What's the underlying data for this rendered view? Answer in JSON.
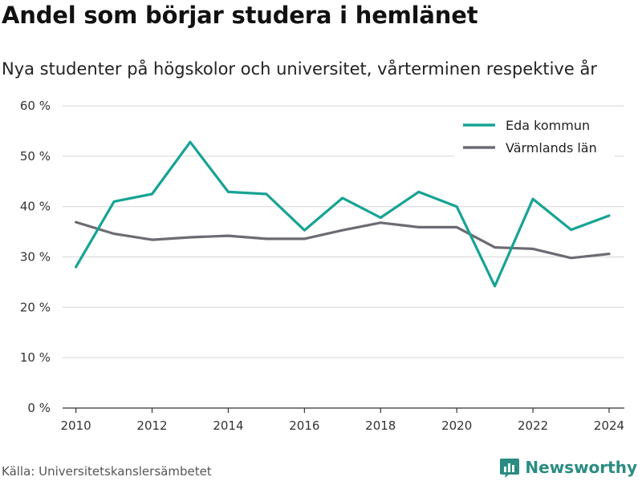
{
  "title": "Andel som börjar studera i hemlänet",
  "subtitle": "Nya studenter på högskolor och universitet, vårterminen respektive år",
  "source": "Källa: Universitetskanslersämbetet",
  "brand": "Newsworthy",
  "chart_data": {
    "type": "line",
    "title": "Andel som börjar studera i hemlänet",
    "xlabel": "",
    "ylabel": "",
    "x": [
      2010,
      2011,
      2012,
      2013,
      2014,
      2015,
      2016,
      2017,
      2018,
      2019,
      2020,
      2021,
      2022,
      2023,
      2024
    ],
    "x_ticks": [
      "2010",
      "2012",
      "2014",
      "2016",
      "2018",
      "2020",
      "2022",
      "2024"
    ],
    "y_ticks": [
      "0 %",
      "10 %",
      "20 %",
      "30 %",
      "40 %",
      "50 %",
      "60 %"
    ],
    "ylim": [
      0,
      60
    ],
    "xlim": [
      2009.65,
      2024.4
    ],
    "grid": true,
    "legend_position": "top-right",
    "series": [
      {
        "name": "Eda kommun",
        "color": "#16a394",
        "values": [
          28.0,
          41.0,
          42.5,
          52.8,
          42.9,
          42.5,
          35.3,
          41.7,
          37.8,
          42.9,
          40.0,
          24.2,
          41.5,
          35.4,
          38.2
        ]
      },
      {
        "name": "Värmlands län",
        "color": "#6c6b73",
        "values": [
          36.9,
          34.6,
          33.4,
          33.9,
          34.2,
          33.6,
          33.6,
          35.3,
          36.8,
          35.9,
          35.9,
          31.9,
          31.6,
          29.8,
          30.6
        ]
      }
    ]
  }
}
